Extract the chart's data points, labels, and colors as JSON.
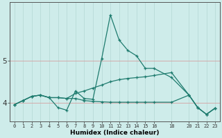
{
  "xlabel": "Humidex (Indice chaleur)",
  "background_color": "#ceecea",
  "line_color": "#1e7b6e",
  "grid_color": "#b8dbd8",
  "x_ticks": [
    0,
    1,
    2,
    3,
    4,
    5,
    6,
    7,
    8,
    9,
    10,
    11,
    12,
    13,
    14,
    15,
    16,
    18,
    20,
    21,
    22,
    23
  ],
  "series": [
    {
      "x": [
        0,
        1,
        2,
        3,
        4,
        5,
        6,
        7,
        8,
        9,
        10,
        11,
        12,
        13,
        14,
        15,
        16,
        18,
        20,
        21,
        22,
        23
      ],
      "y": [
        3.95,
        4.05,
        4.15,
        4.18,
        4.12,
        3.88,
        3.82,
        4.28,
        4.1,
        4.08,
        5.05,
        6.1,
        5.5,
        5.25,
        5.12,
        4.82,
        4.82,
        4.6,
        4.18,
        3.88,
        3.72,
        3.87
      ]
    },
    {
      "x": [
        0,
        1,
        2,
        3,
        4,
        5,
        6,
        7,
        8,
        9,
        10,
        11,
        12,
        13,
        14,
        15,
        16,
        18,
        20,
        21,
        22,
        23
      ],
      "y": [
        3.95,
        4.05,
        4.15,
        4.18,
        4.12,
        4.12,
        4.1,
        4.22,
        4.28,
        4.35,
        4.42,
        4.5,
        4.55,
        4.58,
        4.6,
        4.62,
        4.65,
        4.72,
        4.18,
        3.88,
        3.72,
        3.87
      ]
    },
    {
      "x": [
        0,
        1,
        2,
        3,
        4,
        5,
        6,
        7,
        8,
        9,
        10,
        11,
        12,
        13,
        14,
        15,
        16,
        18,
        20,
        21,
        22,
        23
      ],
      "y": [
        3.95,
        4.05,
        4.15,
        4.18,
        4.12,
        4.12,
        4.1,
        4.1,
        4.05,
        4.03,
        4.02,
        4.01,
        4.01,
        4.01,
        4.01,
        4.01,
        4.01,
        4.01,
        4.18,
        3.88,
        3.72,
        3.87
      ]
    }
  ],
  "ylim": [
    3.55,
    6.4
  ],
  "yticks": [
    4,
    5
  ],
  "ytick_labels": [
    "4",
    "5"
  ],
  "xlim": [
    -0.5,
    23.5
  ],
  "figsize": [
    3.2,
    2.0
  ],
  "dpi": 100
}
